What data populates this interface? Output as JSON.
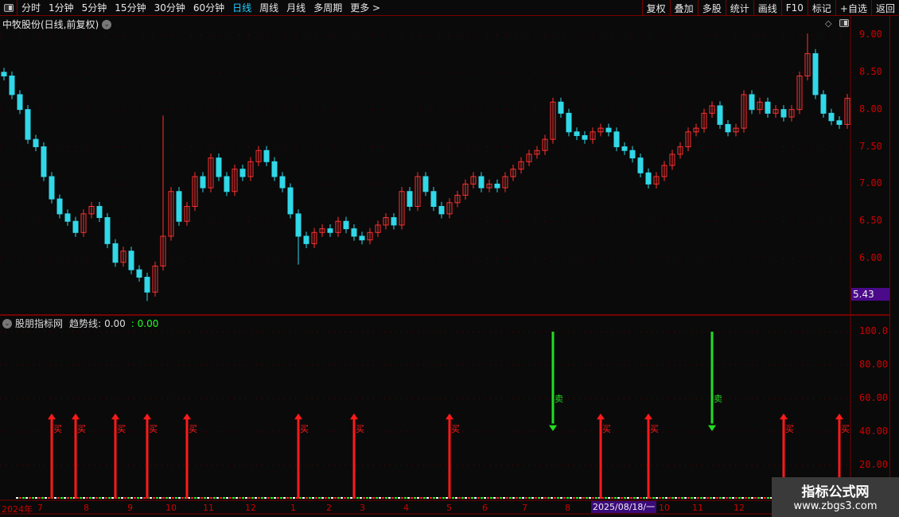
{
  "toolbar": {
    "periods": [
      "分时",
      "1分钟",
      "5分钟",
      "15分钟",
      "30分钟",
      "60分钟",
      "日线",
      "周线",
      "月线",
      "多周期",
      "更多 >"
    ],
    "active": "日线",
    "right_buttons": [
      "复权",
      "叠加",
      "多股",
      "统计",
      "画线",
      "F10",
      "标记",
      "+自选",
      "返回"
    ]
  },
  "main": {
    "title": "中牧股份(日线,前复权)",
    "y_ticks": [
      "9.00",
      "8.50",
      "8.00",
      "7.50",
      "7.00",
      "6.50",
      "6.00"
    ],
    "current_price_tag": "5.43",
    "closes": [
      8.45,
      8.2,
      8.0,
      7.6,
      7.5,
      7.1,
      6.8,
      6.6,
      6.5,
      6.35,
      6.6,
      6.7,
      6.55,
      6.2,
      5.95,
      6.1,
      5.85,
      5.75,
      5.55,
      5.9,
      6.3,
      6.9,
      6.5,
      6.7,
      7.1,
      6.95,
      7.35,
      7.1,
      6.9,
      7.2,
      7.1,
      7.3,
      7.45,
      7.3,
      7.1,
      6.95,
      6.6,
      6.3,
      6.2,
      6.35,
      6.4,
      6.35,
      6.5,
      6.4,
      6.3,
      6.25,
      6.35,
      6.45,
      6.55,
      6.45,
      6.9,
      6.7,
      7.1,
      6.9,
      6.7,
      6.6,
      6.75,
      6.85,
      7.0,
      7.1,
      6.95,
      7.0,
      6.95,
      7.1,
      7.2,
      7.3,
      7.4,
      7.45,
      7.6,
      8.1,
      7.95,
      7.7,
      7.65,
      7.6,
      7.7,
      7.75,
      7.7,
      7.5,
      7.45,
      7.35,
      7.15,
      7.0,
      7.1,
      7.25,
      7.4,
      7.5,
      7.7,
      7.75,
      7.95,
      8.05,
      7.8,
      7.7,
      7.75,
      8.2,
      8.0,
      8.1,
      7.95,
      8.0,
      7.9,
      8.0,
      8.45,
      8.75,
      8.2,
      7.95,
      7.85,
      7.8,
      8.15
    ],
    "colors": {
      "up": "#ff3030",
      "down": "#30d8e8"
    }
  },
  "indicator": {
    "name": "股朋指标网",
    "line_label": "趋势线:",
    "value1": "0.00",
    "value2": ": 0.00",
    "y_ticks": [
      "100.0",
      "80.00",
      "60.00",
      "40.00",
      "20.00"
    ],
    "buy_label": "买",
    "sell_label": "卖",
    "signals": [
      {
        "type": "buy",
        "bar": 6
      },
      {
        "type": "buy",
        "bar": 9
      },
      {
        "type": "buy",
        "bar": 14
      },
      {
        "type": "buy",
        "bar": 18
      },
      {
        "type": "buy",
        "bar": 23
      },
      {
        "type": "buy",
        "bar": 37
      },
      {
        "type": "buy",
        "bar": 44
      },
      {
        "type": "buy",
        "bar": 56
      },
      {
        "type": "sell",
        "bar": 69
      },
      {
        "type": "buy",
        "bar": 75
      },
      {
        "type": "buy",
        "bar": 81
      },
      {
        "type": "sell",
        "bar": 89
      },
      {
        "type": "buy",
        "bar": 98
      },
      {
        "type": "buy",
        "bar": 105
      }
    ],
    "colors": {
      "buy": "#ff1a1a",
      "sell": "#22dd22"
    }
  },
  "xaxis": {
    "labels": [
      "2024年",
      "7",
      "8",
      "9",
      "10",
      "11",
      "12",
      "1",
      "2",
      "3",
      "4",
      "5",
      "6",
      "7",
      "8",
      "10",
      "11",
      "12"
    ],
    "crosshair_date": "2025/08/18/一"
  },
  "watermark": {
    "title": "指标公式网",
    "url": "www.zbgs3.com"
  }
}
